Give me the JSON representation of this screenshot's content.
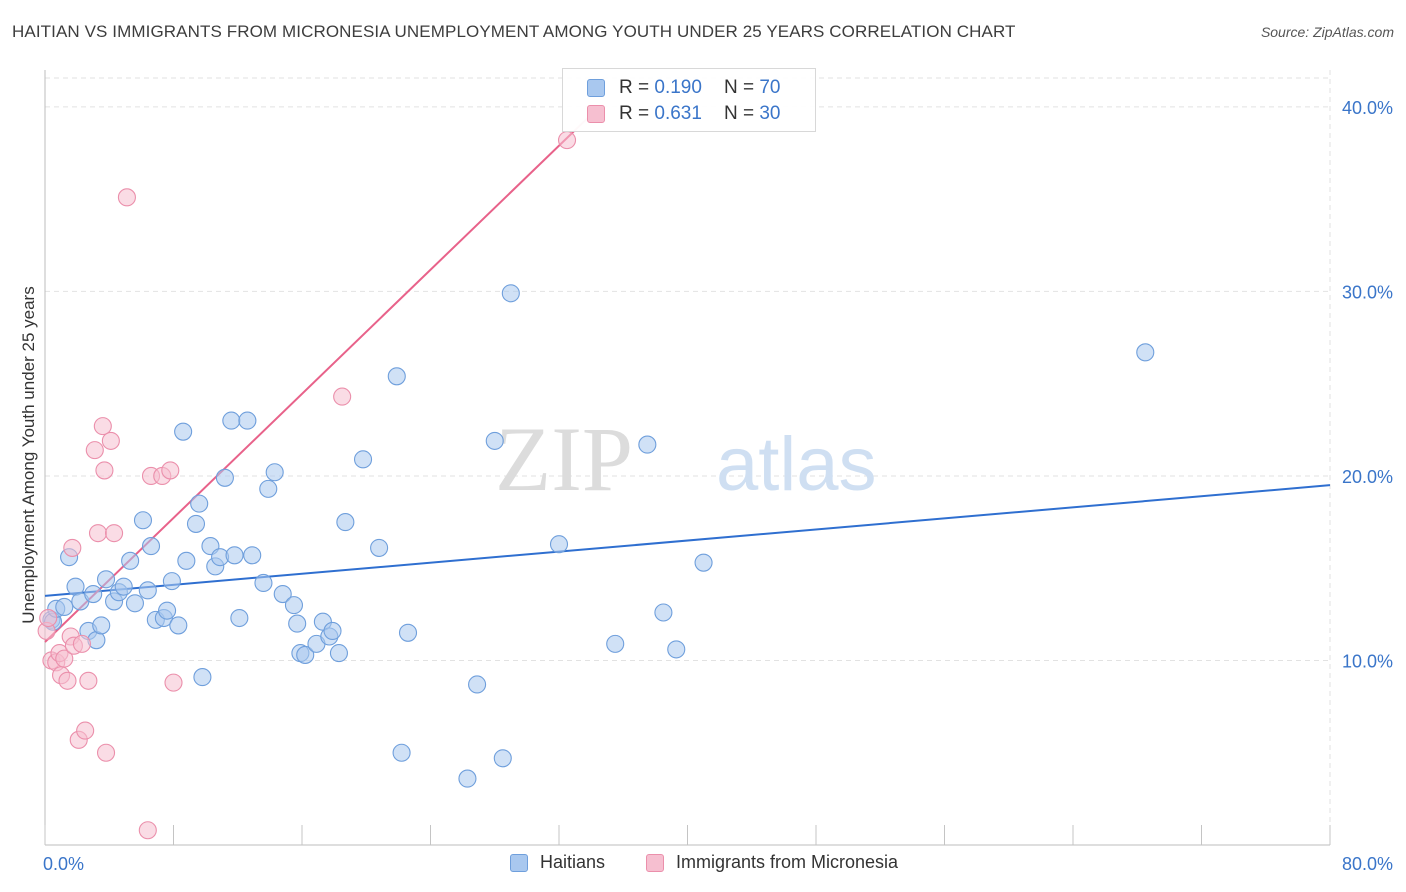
{
  "title": "HAITIAN VS IMMIGRANTS FROM MICRONESIA UNEMPLOYMENT AMONG YOUTH UNDER 25 YEARS CORRELATION CHART",
  "source": "Source: ZipAtlas.com",
  "watermark": {
    "zip": "ZIP",
    "atlas": "atlas"
  },
  "legend": {
    "rows": [
      {
        "r_label": "R =",
        "r_value": "0.190",
        "n_label": "N =",
        "n_value": "70"
      },
      {
        "r_label": "R =",
        "r_value": "0.631",
        "n_label": "N =",
        "n_value": "30"
      }
    ]
  },
  "bottom_legend": {
    "series1": "Haitians",
    "series2": "Immigrants from Micronesia"
  },
  "colors": {
    "series1_fill": "#a9c8ef",
    "series1_stroke": "#6f9fdc",
    "series1_line": "#2f6fd0",
    "series2_fill": "#f6bfd0",
    "series2_stroke": "#eb8fab",
    "series2_line": "#e8628a",
    "axis_text": "#3a75c9",
    "grid": "#e2e2e2"
  },
  "chart_data": {
    "type": "scatter",
    "title": "HAITIAN VS IMMIGRANTS FROM MICRONESIA UNEMPLOYMENT AMONG YOUTH UNDER 25 YEARS CORRELATION CHART",
    "xlabel": "",
    "ylabel": "Unemployment Among Youth under 25 years",
    "xlim": [
      0,
      80
    ],
    "ylim": [
      0,
      42
    ],
    "x_tick_labels": [
      "0.0%",
      "80.0%"
    ],
    "y_ticks": [
      10,
      20,
      30,
      40
    ],
    "y_tick_labels": [
      "10.0%",
      "20.0%",
      "30.0%",
      "40.0%"
    ],
    "legend_position": "top-center",
    "series": [
      {
        "name": "Haitians",
        "r": 0.19,
        "n": 70,
        "trend": {
          "x": [
            0,
            80
          ],
          "y": [
            13.5,
            19.5
          ]
        },
        "points": [
          [
            0.4,
            12.2
          ],
          [
            0.5,
            12.1
          ],
          [
            0.7,
            12.8
          ],
          [
            1.2,
            12.9
          ],
          [
            1.5,
            15.6
          ],
          [
            1.9,
            14.0
          ],
          [
            2.2,
            13.2
          ],
          [
            2.7,
            11.6
          ],
          [
            3.0,
            13.6
          ],
          [
            3.2,
            11.1
          ],
          [
            3.5,
            11.9
          ],
          [
            3.8,
            14.4
          ],
          [
            4.3,
            13.2
          ],
          [
            4.6,
            13.7
          ],
          [
            4.9,
            14.0
          ],
          [
            5.3,
            15.4
          ],
          [
            5.6,
            13.1
          ],
          [
            6.1,
            17.6
          ],
          [
            6.4,
            13.8
          ],
          [
            6.6,
            16.2
          ],
          [
            6.9,
            12.2
          ],
          [
            7.4,
            12.3
          ],
          [
            7.6,
            12.7
          ],
          [
            7.9,
            14.3
          ],
          [
            8.3,
            11.9
          ],
          [
            8.6,
            22.4
          ],
          [
            8.8,
            15.4
          ],
          [
            9.4,
            17.4
          ],
          [
            9.6,
            18.5
          ],
          [
            9.8,
            9.1
          ],
          [
            10.3,
            16.2
          ],
          [
            10.6,
            15.1
          ],
          [
            10.9,
            15.6
          ],
          [
            11.2,
            19.9
          ],
          [
            11.6,
            23.0
          ],
          [
            11.8,
            15.7
          ],
          [
            12.1,
            12.3
          ],
          [
            12.6,
            23.0
          ],
          [
            12.9,
            15.7
          ],
          [
            13.6,
            14.2
          ],
          [
            13.9,
            19.3
          ],
          [
            14.3,
            20.2
          ],
          [
            14.8,
            13.6
          ],
          [
            15.5,
            13.0
          ],
          [
            15.7,
            12.0
          ],
          [
            15.9,
            10.4
          ],
          [
            16.2,
            10.3
          ],
          [
            16.9,
            10.9
          ],
          [
            17.3,
            12.1
          ],
          [
            17.7,
            11.3
          ],
          [
            17.9,
            11.6
          ],
          [
            18.3,
            10.4
          ],
          [
            18.7,
            17.5
          ],
          [
            19.8,
            20.9
          ],
          [
            20.8,
            16.1
          ],
          [
            21.9,
            25.4
          ],
          [
            22.2,
            5.0
          ],
          [
            22.6,
            11.5
          ],
          [
            26.3,
            3.6
          ],
          [
            26.9,
            8.7
          ],
          [
            28.0,
            21.9
          ],
          [
            28.5,
            4.7
          ],
          [
            29.0,
            29.9
          ],
          [
            32.0,
            16.3
          ],
          [
            35.5,
            10.9
          ],
          [
            37.5,
            21.7
          ],
          [
            38.5,
            12.6
          ],
          [
            39.3,
            10.6
          ],
          [
            41.0,
            15.3
          ],
          [
            68.5,
            26.7
          ]
        ]
      },
      {
        "name": "Immigrants from Micronesia",
        "r": 0.631,
        "n": 30,
        "trend": {
          "x": [
            0,
            34.5
          ],
          "y": [
            11.0,
            40.0
          ]
        },
        "points": [
          [
            0.1,
            11.6
          ],
          [
            0.2,
            12.3
          ],
          [
            0.4,
            10.0
          ],
          [
            0.7,
            9.9
          ],
          [
            0.9,
            10.4
          ],
          [
            1.0,
            9.2
          ],
          [
            1.2,
            10.1
          ],
          [
            1.4,
            8.9
          ],
          [
            1.6,
            11.3
          ],
          [
            1.7,
            16.1
          ],
          [
            1.8,
            10.8
          ],
          [
            2.1,
            5.7
          ],
          [
            2.3,
            10.9
          ],
          [
            2.5,
            6.2
          ],
          [
            2.7,
            8.9
          ],
          [
            3.1,
            21.4
          ],
          [
            3.3,
            16.9
          ],
          [
            3.6,
            22.7
          ],
          [
            3.7,
            20.3
          ],
          [
            3.8,
            5.0
          ],
          [
            4.1,
            21.9
          ],
          [
            4.3,
            16.9
          ],
          [
            5.1,
            35.1
          ],
          [
            6.4,
            0.8
          ],
          [
            6.6,
            20.0
          ],
          [
            7.3,
            20.0
          ],
          [
            7.8,
            20.3
          ],
          [
            8.0,
            8.8
          ],
          [
            18.5,
            24.3
          ],
          [
            32.5,
            38.2
          ]
        ]
      }
    ]
  }
}
